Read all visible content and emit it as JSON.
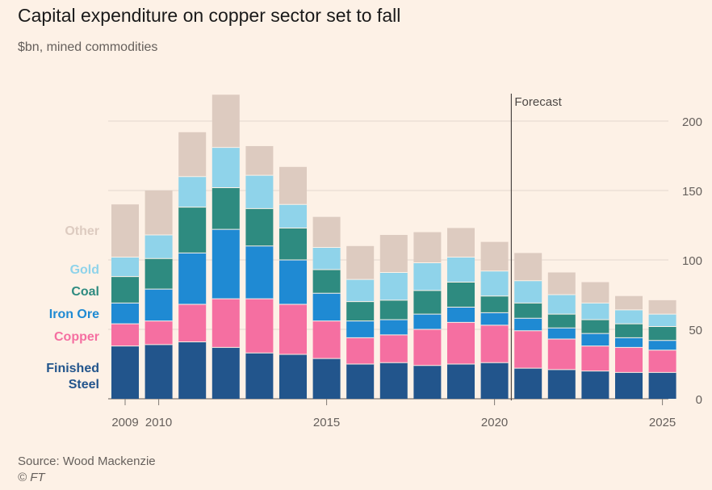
{
  "title": "Capital expenditure on copper sector set to fall",
  "subtitle": "$bn, mined commodities",
  "source": "Source: Wood Mackenzie",
  "copyright": "© FT",
  "chart_data": {
    "type": "bar",
    "stacked": true,
    "categories": [
      "2009",
      "2010",
      "2011",
      "2012",
      "2013",
      "2014",
      "2015",
      "2016",
      "2017",
      "2018",
      "2019",
      "2020",
      "2021",
      "2022",
      "2023",
      "2024",
      "2025"
    ],
    "x_tick_labels": [
      "2009",
      "2010",
      "2015",
      "2020",
      "2025"
    ],
    "y_ticks": [
      0,
      50,
      100,
      150,
      200
    ],
    "ylim": [
      0,
      220
    ],
    "y_axis_position": "right",
    "grid": true,
    "forecast_label": "Forecast",
    "forecast_starts_after": "2020",
    "series": [
      {
        "name": "Finished Steel",
        "color": "#22558c",
        "values": [
          38,
          39,
          41,
          37,
          33,
          32,
          29,
          25,
          26,
          24,
          25,
          26,
          22,
          21,
          20,
          19,
          19
        ]
      },
      {
        "name": "Copper",
        "color": "#f56fa1",
        "values": [
          16,
          17,
          27,
          35,
          39,
          36,
          27,
          19,
          20,
          26,
          30,
          27,
          27,
          22,
          18,
          18,
          16
        ]
      },
      {
        "name": "Iron Ore",
        "color": "#1f8ad3",
        "values": [
          15,
          23,
          37,
          50,
          38,
          32,
          20,
          12,
          11,
          11,
          11,
          9,
          9,
          8,
          9,
          7,
          7
        ]
      },
      {
        "name": "Coal",
        "color": "#2e8b80",
        "values": [
          19,
          22,
          33,
          30,
          27,
          23,
          17,
          14,
          14,
          17,
          18,
          12,
          11,
          10,
          10,
          10,
          10
        ]
      },
      {
        "name": "Gold",
        "color": "#8fd3ea",
        "values": [
          14,
          17,
          22,
          29,
          24,
          17,
          16,
          16,
          20,
          20,
          18,
          18,
          16,
          14,
          12,
          10,
          9
        ]
      },
      {
        "name": "Other",
        "color": "#ddcbc0",
        "values": [
          38,
          32,
          32,
          38,
          21,
          27,
          22,
          24,
          27,
          22,
          21,
          21,
          20,
          16,
          15,
          10,
          10
        ]
      }
    ]
  }
}
